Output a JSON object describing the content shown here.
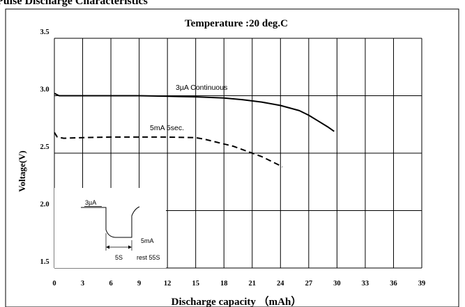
{
  "page_heading": "Pulse Discharge Characteristics",
  "chart_data": {
    "type": "line",
    "title": "Temperature :20 deg.C",
    "xlabel": "Discharge capacity （mAh）",
    "ylabel": "Voltage(V)",
    "xlim": [
      0,
      39
    ],
    "ylim": [
      1.5,
      3.5
    ],
    "x_ticks": [
      "0",
      "3",
      "6",
      "9",
      "12",
      "15",
      "18",
      "21",
      "24",
      "27",
      "30",
      "33",
      "36",
      "39"
    ],
    "y_ticks": [
      "1.5",
      "2.0",
      "2.5",
      "3.0",
      "3.5"
    ],
    "grid": true,
    "series": [
      {
        "name": "3µA  Continuous",
        "style": "solid",
        "color": "#000000",
        "x": [
          0,
          0.5,
          3,
          6,
          9,
          12,
          15,
          18,
          20,
          22,
          24,
          26,
          27,
          28,
          29,
          29.7
        ],
        "y": [
          3.02,
          3.0,
          3.0,
          3.0,
          3.0,
          2.995,
          2.99,
          2.98,
          2.965,
          2.945,
          2.915,
          2.87,
          2.83,
          2.78,
          2.73,
          2.69
        ]
      },
      {
        "name": "5mA  5sec.",
        "style": "dashed",
        "color": "#000000",
        "x": [
          0,
          0.3,
          1,
          3,
          6,
          9,
          12,
          15,
          16,
          17,
          18,
          19,
          20,
          21,
          22,
          23,
          24,
          24.2
        ],
        "y": [
          2.68,
          2.64,
          2.63,
          2.635,
          2.64,
          2.64,
          2.64,
          2.635,
          2.62,
          2.6,
          2.58,
          2.56,
          2.53,
          2.5,
          2.47,
          2.43,
          2.39,
          2.38
        ]
      }
    ],
    "inset": {
      "high_label": "3µA",
      "low_label": "5mA",
      "pulse_label": "5S",
      "rest_label": "rest 55S"
    }
  }
}
